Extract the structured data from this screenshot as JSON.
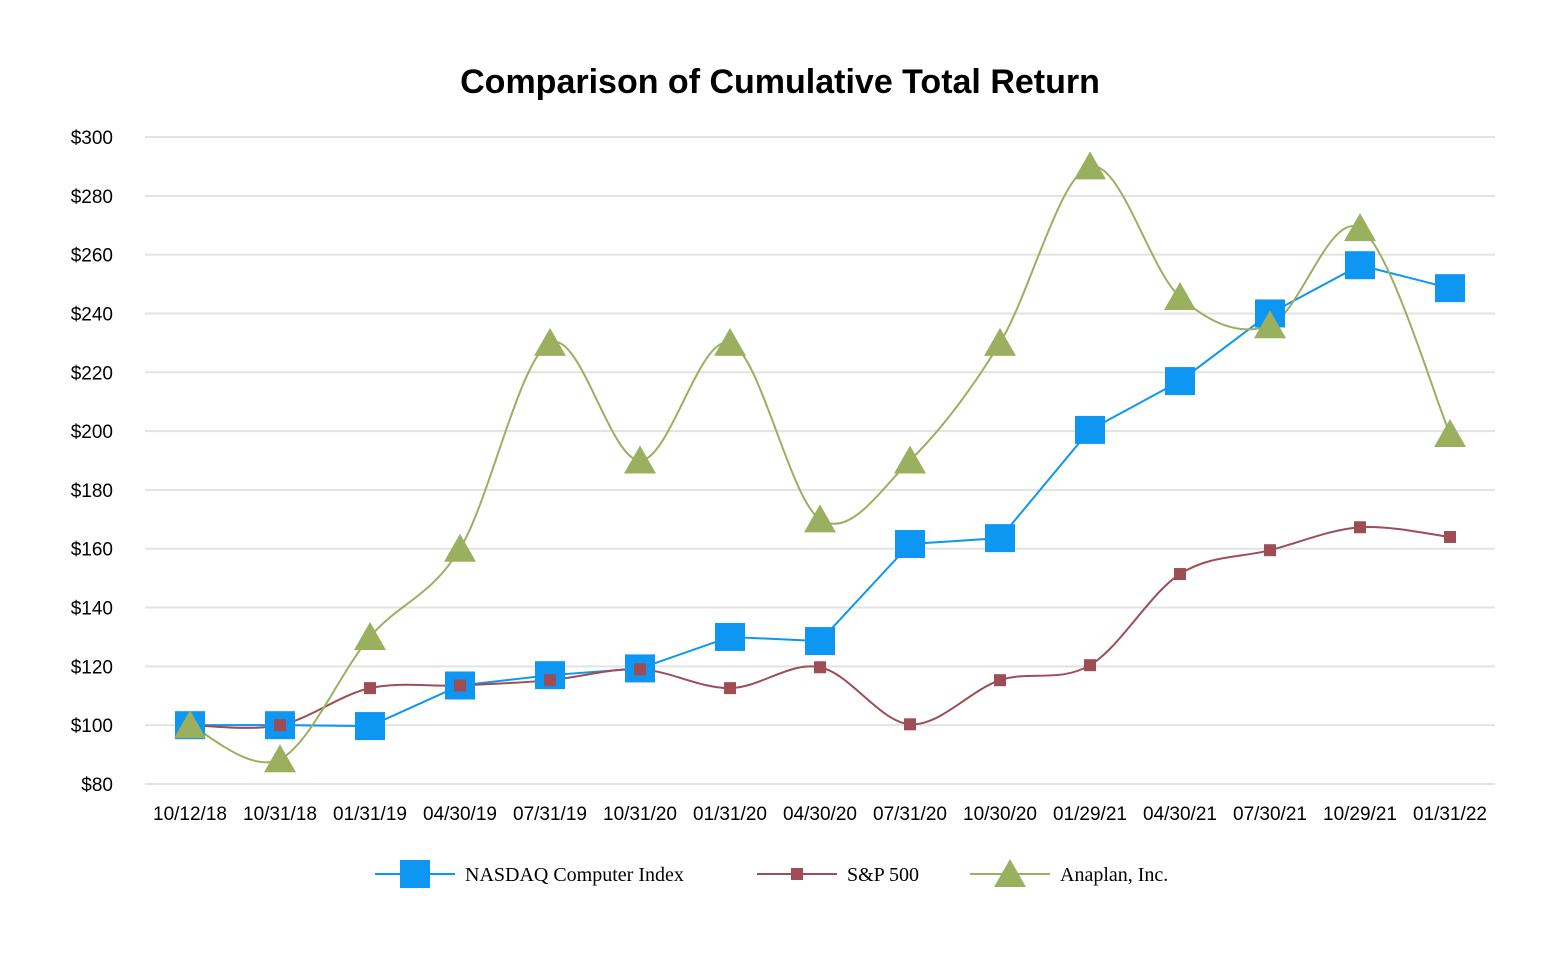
{
  "chart_data": {
    "type": "line",
    "title": "Comparison of Cumulative Total Return",
    "xlabel": "",
    "ylabel": "",
    "ylim": [
      80,
      300
    ],
    "yticks": [
      "$80",
      "$100",
      "$120",
      "$140",
      "$160",
      "$180",
      "$200",
      "$220",
      "$240",
      "$260",
      "$280",
      "$300"
    ],
    "grid": true,
    "legend_position": "bottom",
    "categories": [
      "10/12/18",
      "10/31/18",
      "01/31/19",
      "04/30/19",
      "07/31/19",
      "10/31/20",
      "01/31/20",
      "04/30/20",
      "07/31/20",
      "10/30/20",
      "01/29/21",
      "04/30/21",
      "07/30/21",
      "10/29/21",
      "01/31/22"
    ],
    "series": [
      {
        "name": "NASDAQ Computer Index",
        "color": "#0d96f2",
        "marker": "square",
        "smooth": false,
        "values": [
          100,
          100,
          99.7,
          113.5,
          117,
          119.3,
          130,
          128.6,
          161.6,
          163.6,
          200.4,
          217,
          240,
          256.4,
          248.6
        ]
      },
      {
        "name": "S&P 500",
        "color": "#9e4d55",
        "marker": "small-square",
        "smooth": true,
        "values": [
          100,
          100,
          112.6,
          113.5,
          115.3,
          119,
          112.6,
          119.7,
          100.3,
          115.3,
          120.4,
          151.4,
          159.5,
          167.3,
          164
        ]
      },
      {
        "name": "Anaplan, Inc.",
        "color": "#9bb05f",
        "marker": "triangle",
        "smooth": true,
        "values": [
          100,
          88.4,
          130,
          160,
          230,
          190,
          230,
          170,
          190,
          230,
          290,
          245.6,
          236,
          269,
          199
        ]
      }
    ]
  }
}
